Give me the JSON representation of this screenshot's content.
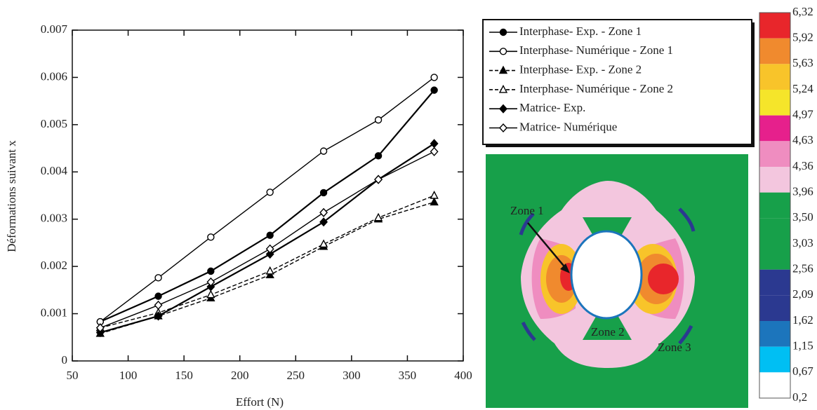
{
  "chart_data": {
    "type": "line",
    "x_label": "Effort (N)",
    "y_label": "Déformations suivant x",
    "x": [
      75,
      127,
      174,
      227,
      275,
      324,
      374
    ],
    "xlim": [
      50,
      400
    ],
    "xticks": [
      50,
      100,
      150,
      200,
      250,
      300,
      350,
      400
    ],
    "ylim": [
      0,
      0.007
    ],
    "yticks": [
      0,
      0.001,
      0.002,
      0.003,
      0.004,
      0.005,
      0.006,
      0.007
    ],
    "series": [
      {
        "name": "Interphase- Exp. - Zone 1",
        "color": "#000000",
        "marker": "circle",
        "filled": true,
        "dashed": false,
        "values": [
          0.00083,
          0.00137,
          0.0019,
          0.00266,
          0.00356,
          0.00434,
          0.00573
        ]
      },
      {
        "name": "Interphase- Numérique - Zone 1",
        "color": "#000000",
        "marker": "circle",
        "filled": false,
        "dashed": false,
        "values": [
          0.00083,
          0.00176,
          0.00262,
          0.00357,
          0.00444,
          0.0051,
          0.006
        ]
      },
      {
        "name": "Interphase- Exp. - Zone 2",
        "color": "#000000",
        "marker": "triangle",
        "filled": true,
        "dashed": true,
        "values": [
          0.00058,
          0.00095,
          0.00133,
          0.00182,
          0.00242,
          0.003,
          0.00336
        ]
      },
      {
        "name": "Interphase- Numérique - Zone 2",
        "color": "#000000",
        "marker": "triangle",
        "filled": false,
        "dashed": true,
        "values": [
          0.0007,
          0.00102,
          0.0014,
          0.0019,
          0.00247,
          0.00303,
          0.0035
        ]
      },
      {
        "name": "Matrice- Exp.",
        "color": "#000000",
        "marker": "diamond",
        "filled": true,
        "dashed": false,
        "values": [
          0.0006,
          0.00095,
          0.00157,
          0.00226,
          0.00294,
          0.00384,
          0.0046
        ]
      },
      {
        "name": "Matrice- Numérique",
        "color": "#000000",
        "marker": "diamond",
        "filled": false,
        "dashed": false,
        "values": [
          0.0007,
          0.00118,
          0.00167,
          0.00237,
          0.00314,
          0.00384,
          0.00443
        ]
      }
    ]
  },
  "contour_map": {
    "annotations": [
      "Zone 1",
      "Zone 2",
      "Zone 3"
    ],
    "colorbar": {
      "labels": [
        "6,32",
        "5,92",
        "5,63",
        "5,24",
        "4,97",
        "4,63",
        "4,36",
        "3,96",
        "3,50",
        "3,03",
        "2,56",
        "2,09",
        "1,62",
        "1,15",
        "0,67",
        "0,2"
      ],
      "colors": [
        "#e8262b",
        "#f08a2e",
        "#f8c42a",
        "#f5e52a",
        "#e6208c",
        "#ef8dc0",
        "#f3c6de",
        "#17a04a",
        "#17a04a",
        "#17a04a",
        "#2b3990",
        "#2b3990",
        "#1c75bc",
        "#00bff3",
        "#ffffff"
      ]
    }
  }
}
